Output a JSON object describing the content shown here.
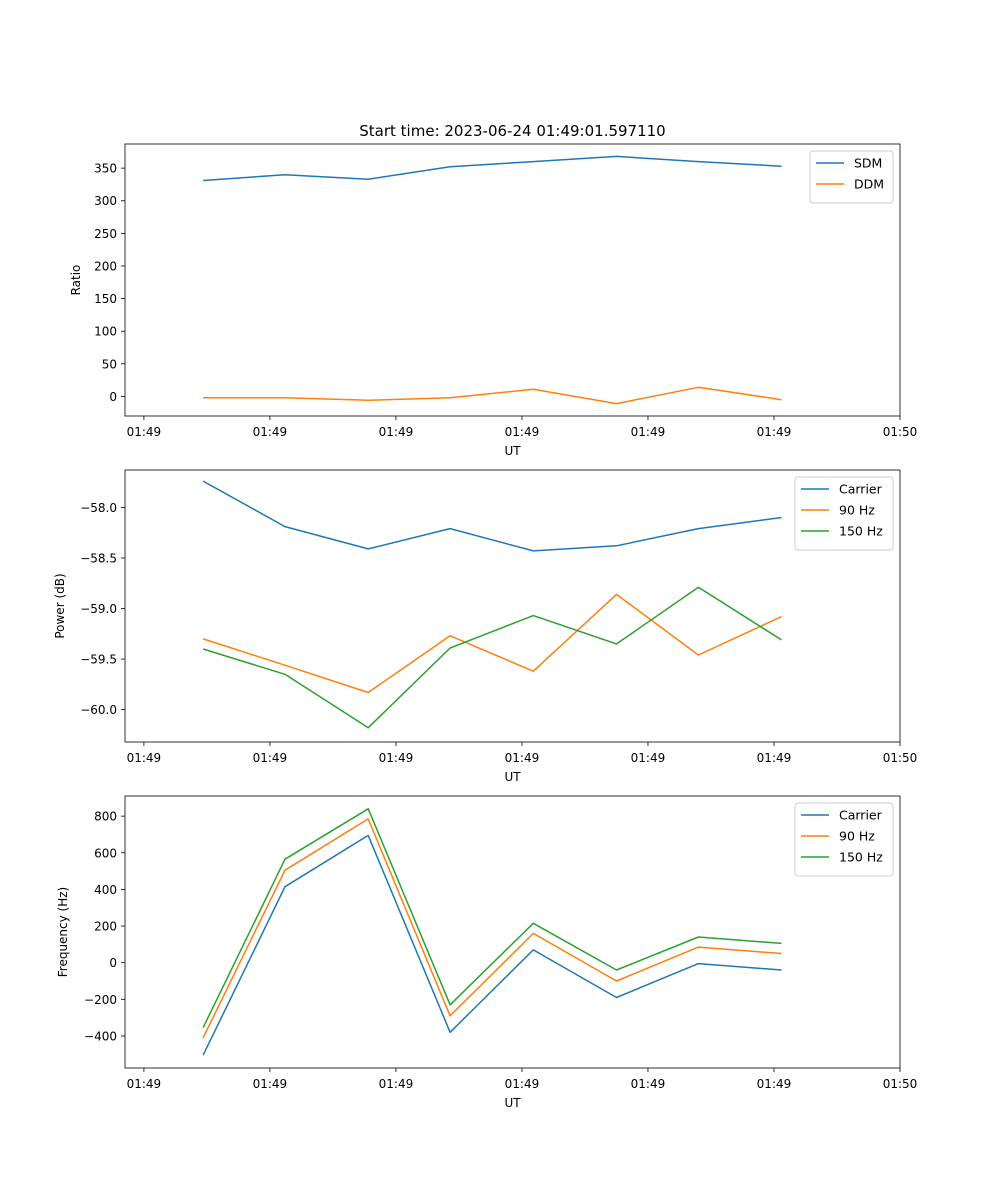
{
  "figure": {
    "title": "Start time: 2023-06-24 01:49:01.597110"
  },
  "colors": {
    "blue": "#1f77b4",
    "orange": "#ff7f0e",
    "green": "#2ca02c"
  },
  "chart_data": [
    {
      "type": "line",
      "title": "Start time: 2023-06-24 01:49:01.597110",
      "xlabel": "UT",
      "ylabel": "Ratio",
      "xticks": [
        "01:49",
        "01:49",
        "01:49",
        "01:49",
        "01:49",
        "01:49",
        "01:50"
      ],
      "xtick_values": [
        0,
        1,
        2,
        3,
        4,
        5,
        6
      ],
      "xlim": [
        -0.15,
        6.0
      ],
      "ylim": [
        -30,
        387
      ],
      "yticks": [
        0,
        50,
        100,
        150,
        200,
        250,
        300,
        350
      ],
      "x": [
        0.47,
        1.12,
        1.78,
        2.43,
        3.09,
        3.75,
        4.4,
        5.06
      ],
      "legend": "top-right",
      "grid": false,
      "series": [
        {
          "name": "SDM",
          "color": "#1f77b4",
          "values": [
            331,
            340,
            333,
            352,
            360,
            368,
            360,
            353
          ]
        },
        {
          "name": "DDM",
          "color": "#ff7f0e",
          "values": [
            -2,
            -2,
            -6,
            -2,
            11,
            -11,
            14,
            -5
          ]
        }
      ]
    },
    {
      "type": "line",
      "xlabel": "UT",
      "ylabel": "Power (dB)",
      "xticks": [
        "01:49",
        "01:49",
        "01:49",
        "01:49",
        "01:49",
        "01:49",
        "01:50"
      ],
      "xtick_values": [
        0,
        1,
        2,
        3,
        4,
        5,
        6
      ],
      "xlim": [
        -0.15,
        6.0
      ],
      "ylim": [
        -60.32,
        -57.63
      ],
      "yticks": [
        -60.0,
        -59.5,
        -59.0,
        -58.5,
        -58.0
      ],
      "ytick_labels": [
        "−60.0",
        "−59.5",
        "−59.0",
        "−58.5",
        "−58.0"
      ],
      "x": [
        0.47,
        1.12,
        1.78,
        2.43,
        3.09,
        3.75,
        4.4,
        5.06
      ],
      "legend": "top-right",
      "grid": false,
      "series": [
        {
          "name": "Carrier",
          "color": "#1f77b4",
          "values": [
            -57.74,
            -58.19,
            -58.41,
            -58.21,
            -58.43,
            -58.38,
            -58.21,
            -58.1
          ]
        },
        {
          "name": "90 Hz",
          "color": "#ff7f0e",
          "values": [
            -59.3,
            -59.56,
            -59.83,
            -59.27,
            -59.62,
            -58.86,
            -59.46,
            -59.08
          ]
        },
        {
          "name": "150 Hz",
          "color": "#2ca02c",
          "values": [
            -59.4,
            -59.65,
            -60.18,
            -59.39,
            -59.07,
            -59.35,
            -58.79,
            -59.31
          ]
        }
      ]
    },
    {
      "type": "line",
      "xlabel": "UT",
      "ylabel": "Frequency (Hz)",
      "xticks": [
        "01:49",
        "01:49",
        "01:49",
        "01:49",
        "01:49",
        "01:49",
        "01:50"
      ],
      "xtick_values": [
        0,
        1,
        2,
        3,
        4,
        5,
        6
      ],
      "xlim": [
        -0.15,
        6.0
      ],
      "ylim": [
        -575,
        910
      ],
      "yticks": [
        -400,
        -200,
        0,
        200,
        400,
        600,
        800
      ],
      "ytick_labels": [
        "−400",
        "−200",
        "0",
        "200",
        "400",
        "600",
        "800"
      ],
      "x": [
        0.47,
        1.12,
        1.78,
        2.43,
        3.09,
        3.75,
        4.4,
        5.06
      ],
      "legend": "top-right",
      "grid": false,
      "series": [
        {
          "name": "Carrier",
          "color": "#1f77b4",
          "values": [
            -505,
            415,
            695,
            -380,
            70,
            -190,
            -5,
            -40
          ]
        },
        {
          "name": "90 Hz",
          "color": "#ff7f0e",
          "values": [
            -410,
            505,
            785,
            -290,
            160,
            -100,
            85,
            50
          ]
        },
        {
          "name": "150 Hz",
          "color": "#2ca02c",
          "values": [
            -355,
            565,
            840,
            -230,
            215,
            -40,
            140,
            105
          ]
        }
      ]
    }
  ]
}
